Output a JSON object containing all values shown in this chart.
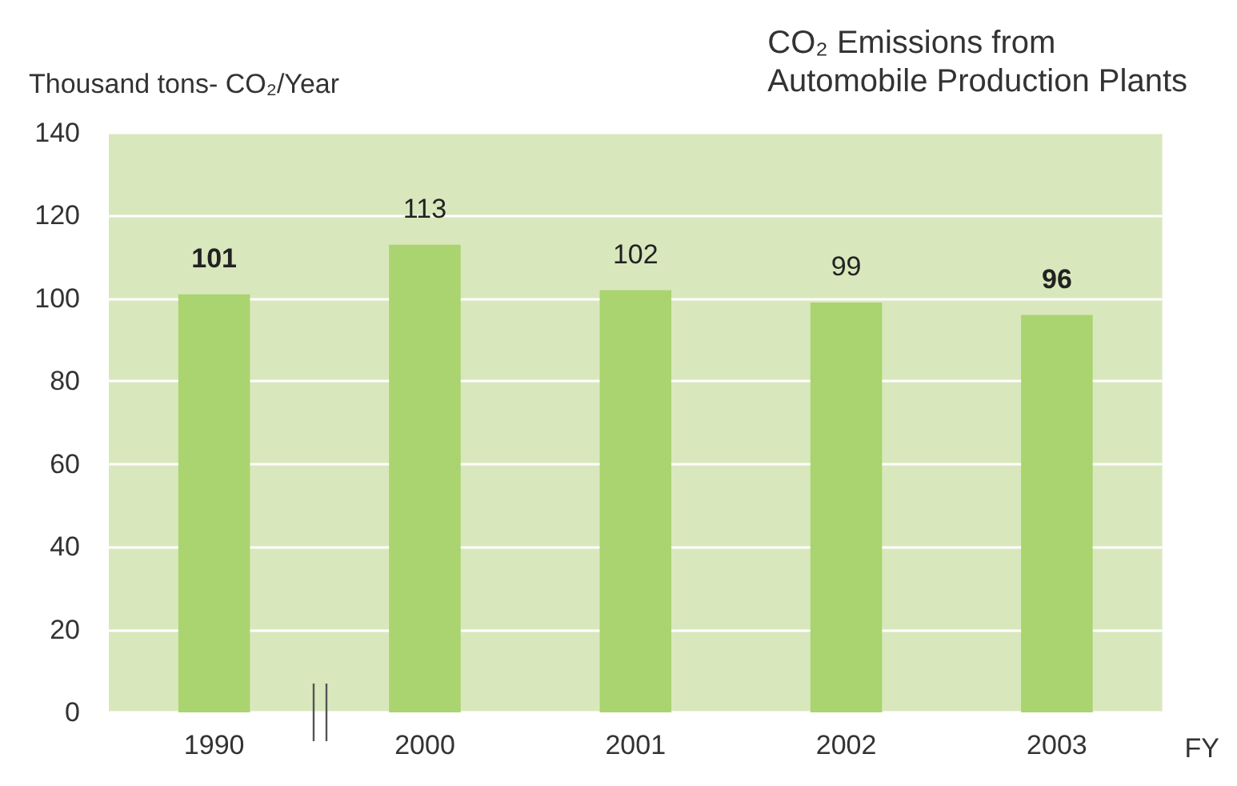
{
  "chart_data": {
    "type": "bar",
    "title": "CO₂ Emissions from\nAutomobile Production Plants",
    "ylabel": "Thousand tons- CO₂/Year",
    "xlabel": "FY",
    "categories": [
      "1990",
      "2000",
      "2001",
      "2002",
      "2003"
    ],
    "values": [
      101,
      113,
      102,
      99,
      96
    ],
    "color": "#a9d46f",
    "ylim": [
      0,
      140
    ],
    "yticks": [
      0,
      20,
      40,
      60,
      80,
      100,
      120,
      140
    ],
    "grid": "y",
    "data_labels": true
  }
}
